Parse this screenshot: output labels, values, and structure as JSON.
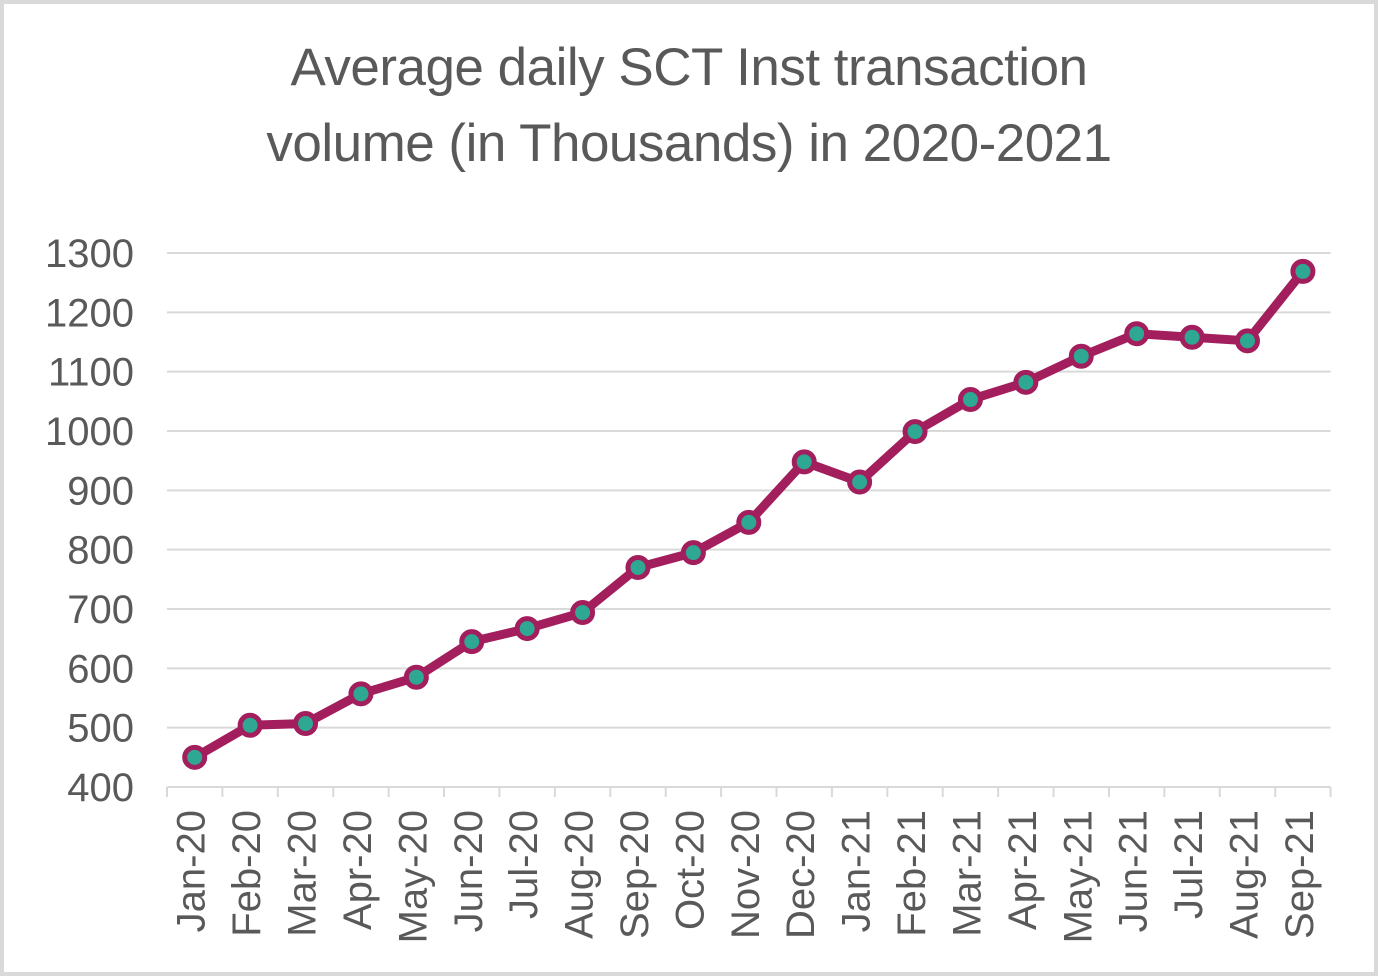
{
  "chart_data": {
    "type": "line",
    "title": "Average daily SCT Inst transaction volume (in Thousands) in 2020-2021",
    "title_lines": [
      "Average daily SCT Inst transaction",
      "volume (in Thousands) in 2020-2021"
    ],
    "categories": [
      "Jan-20",
      "Feb-20",
      "Mar-20",
      "Apr-20",
      "May-20",
      "Jun-20",
      "Jul-20",
      "Aug-20",
      "Sep-20",
      "Oct-20",
      "Nov-20",
      "Dec-20",
      "Jan-21",
      "Feb-21",
      "Mar-21",
      "Apr-21",
      "May-21",
      "Jun-21",
      "Jul-21",
      "Aug-21",
      "Sep-21"
    ],
    "values": [
      450,
      504,
      507,
      557,
      585,
      645,
      667,
      694,
      770,
      795,
      846,
      948,
      914,
      999,
      1053,
      1082,
      1126,
      1164,
      1158,
      1152,
      1269
    ],
    "xlabel": "",
    "ylabel": "",
    "ylim": [
      400,
      1300
    ],
    "y_tick_step": 100,
    "y_ticks": [
      400,
      500,
      600,
      700,
      800,
      900,
      1000,
      1100,
      1200,
      1300
    ],
    "grid": true,
    "legend": false,
    "colors": {
      "line": "#A21E5C",
      "marker_fill": "#2EA793",
      "marker_border": "#A21E5C",
      "grid": "#D9D9D9",
      "axis": "#D9D9D9",
      "text": "#595959",
      "background": "#FFFFFF",
      "frame_border": "#D9D9D9"
    }
  }
}
